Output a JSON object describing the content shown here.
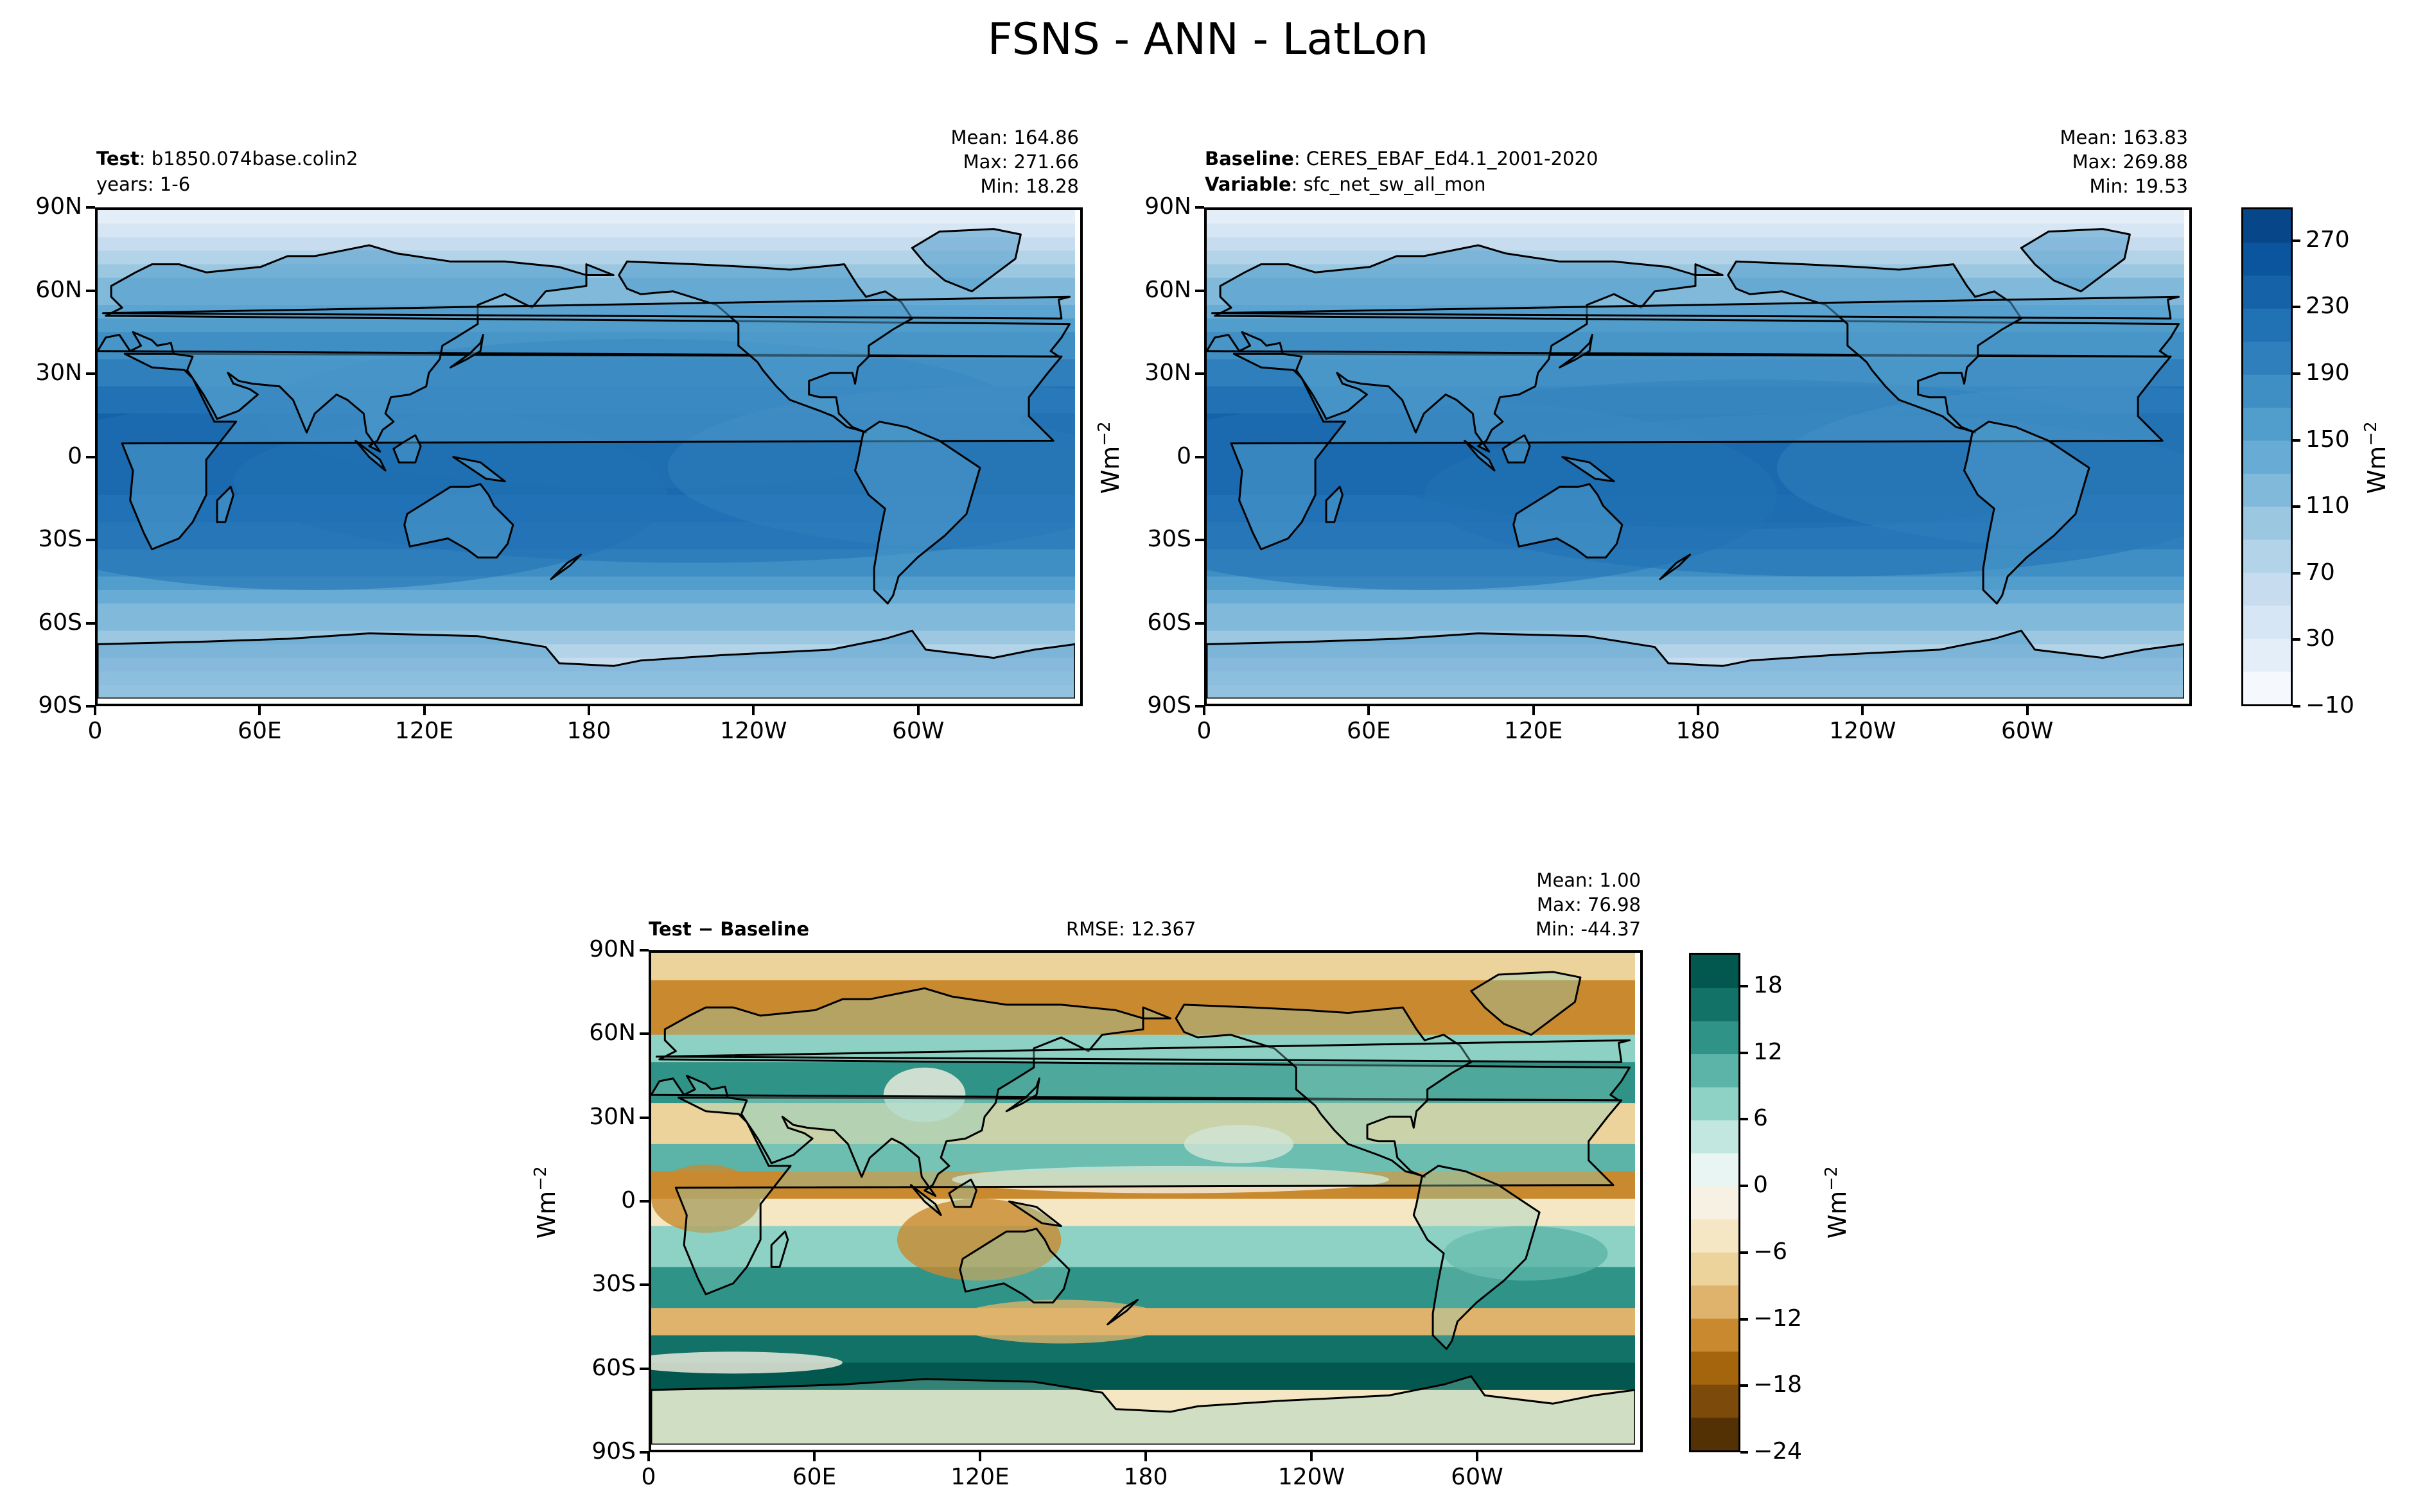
{
  "title": "FSNS - ANN - LatLon",
  "colors": {
    "blues": [
      "#f5f9fe",
      "#e4eef9",
      "#d6e6f4",
      "#c8dcef",
      "#b3d3e8",
      "#9cc7e1",
      "#81b9da",
      "#68abd5",
      "#519dcc",
      "#3f8ec4",
      "#2f7fbc",
      "#2171b5",
      "#1562a9",
      "#0b559f",
      "#08468a",
      "#083370"
    ],
    "brbg": [
      "#543005",
      "#7c4a0a",
      "#a5650d",
      "#c98a2f",
      "#dfb36b",
      "#ecd39b",
      "#f5e7c4",
      "#f6f1e2",
      "#e8f5f3",
      "#c1e7e0",
      "#8dd2c4",
      "#5bb4a7",
      "#2f9387",
      "#137268",
      "#02584e",
      "#003c30"
    ]
  },
  "panels": {
    "test": {
      "label_bold": "Test",
      "label_text": ": b1850.074base.colin2",
      "line2": "years: 1-6",
      "stats": {
        "mean": "Mean: 164.86",
        "max": "Max: 271.66",
        "min": "Min: 18.28"
      }
    },
    "baseline": {
      "label_bold": "Baseline",
      "label_text": ": CERES_EBAF_Ed4.1_2001-2020",
      "line2_bold": "Variable",
      "line2_text": ": sfc_net_sw_all_mon",
      "stats": {
        "mean": "Mean: 163.83",
        "max": "Max: 269.88",
        "min": "Min: 19.53"
      }
    },
    "diff": {
      "label": "Test − Baseline",
      "rmse": "RMSE: 12.367",
      "stats": {
        "mean": "Mean:  1.00",
        "max": "Max: 76.98",
        "min": "Min: -44.37"
      }
    }
  },
  "axes": {
    "lat_ticks": [
      "90N",
      "60N",
      "30N",
      "0",
      "30S",
      "60S",
      "90S"
    ],
    "lon_ticks": [
      "0",
      "60E",
      "120E",
      "180",
      "120W",
      "60W"
    ],
    "unit_label": "Wm",
    "unit_exp": "−2"
  },
  "colorbars": {
    "top": [
      "270",
      "230",
      "190",
      "150",
      "110",
      "70",
      "30",
      "−10"
    ],
    "diff": [
      "18",
      "12",
      "6",
      "0",
      "−6",
      "−12",
      "−18",
      "−24"
    ]
  },
  "chart_data": [
    {
      "type": "heatmap",
      "title": "Test : b1850.074base.colin2 (years: 1-6)",
      "variable": "FSNS",
      "units": "Wm−2",
      "stats": {
        "mean": 164.86,
        "max": 271.66,
        "min": 18.28
      },
      "x": [
        "0",
        "60E",
        "120E",
        "180",
        "120W",
        "60W"
      ],
      "y": [
        "90N",
        "60N",
        "30N",
        "0",
        "30S",
        "60S",
        "90S"
      ],
      "colorbar_range": [
        -10,
        290
      ],
      "colorbar_ticks": [
        -10,
        30,
        70,
        110,
        150,
        190,
        230,
        270
      ]
    },
    {
      "type": "heatmap",
      "title": "Baseline : CERES_EBAF_Ed4.1_2001-2020",
      "variable": "sfc_net_sw_all_mon",
      "units": "Wm−2",
      "stats": {
        "mean": 163.83,
        "max": 269.88,
        "min": 19.53
      },
      "x": [
        "0",
        "60E",
        "120E",
        "180",
        "120W",
        "60W"
      ],
      "y": [
        "90N",
        "60N",
        "30N",
        "0",
        "30S",
        "60S",
        "90S"
      ],
      "colorbar_range": [
        -10,
        290
      ],
      "colorbar_ticks": [
        -10,
        30,
        70,
        110,
        150,
        190,
        230,
        270
      ]
    },
    {
      "type": "heatmap",
      "title": "Test − Baseline",
      "units": "Wm−2",
      "rmse": 12.367,
      "stats": {
        "mean": 1.0,
        "max": 76.98,
        "min": -44.37
      },
      "x": [
        "0",
        "60E",
        "120E",
        "180",
        "120W",
        "60W"
      ],
      "y": [
        "90N",
        "60N",
        "30N",
        "0",
        "30S",
        "60S",
        "90S"
      ],
      "colorbar_range": [
        -24,
        21
      ],
      "colorbar_ticks": [
        -24,
        -18,
        -12,
        -6,
        0,
        6,
        12,
        18
      ]
    }
  ]
}
